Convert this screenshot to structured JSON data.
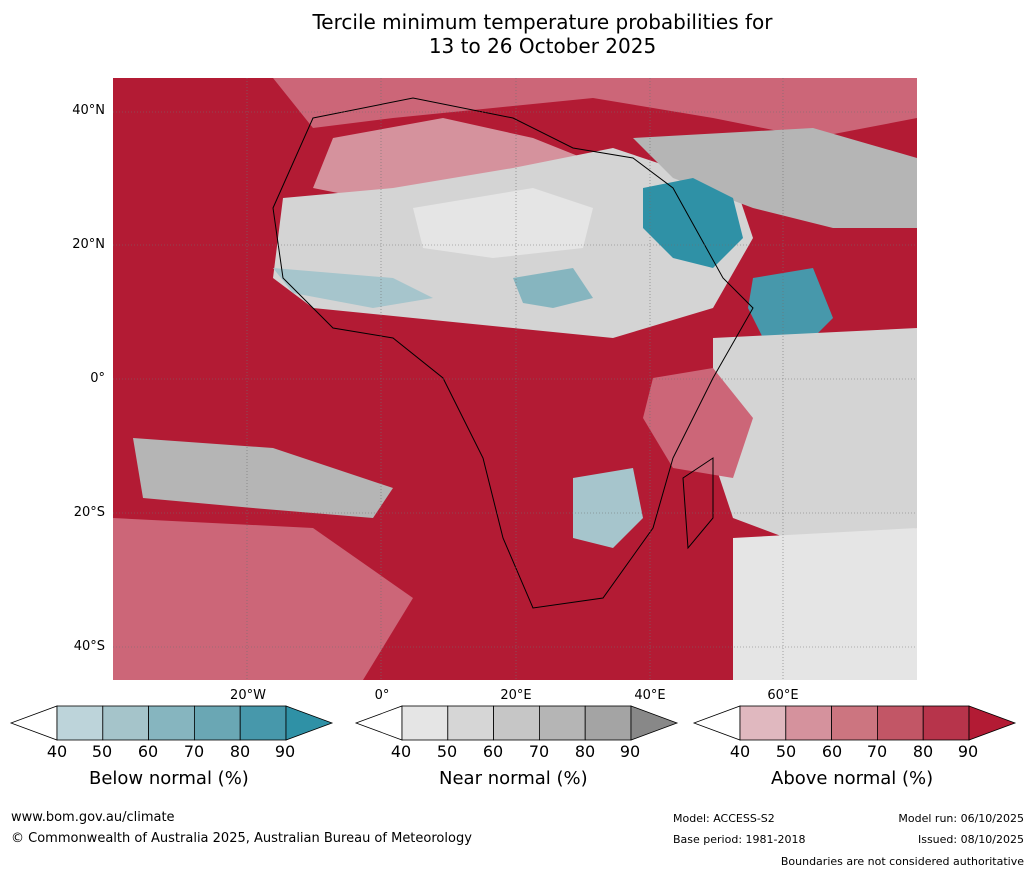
{
  "title_line1": "Tercile minimum temperature probabilities for",
  "title_line2": "13 to 26 October 2025",
  "map": {
    "lat_labels": [
      "40°N",
      "20°N",
      "0°",
      "20°S",
      "40°S"
    ],
    "lon_labels": [
      "20°W",
      "0°",
      "20°E",
      "40°E",
      "60°E"
    ],
    "colors": {
      "above_90": "#b31b34",
      "above_80": "#c4394f",
      "above_70": "#cc6678",
      "above_60": "#d5929d",
      "above_50": "#e0b8bf",
      "near_50": "#d4d4d4",
      "near_70": "#b5b5b5",
      "below_60": "#a6c5cc",
      "below_80": "#2f91a6",
      "white": "#ffffff",
      "coast": "#000000",
      "border": "#808080"
    }
  },
  "colorbars": [
    {
      "name": "Below normal (%)",
      "ticks": [
        "40",
        "50",
        "60",
        "70",
        "80",
        "90"
      ],
      "colors": [
        "#ffffff",
        "#bdd4da",
        "#a5c4ca",
        "#86b5bf",
        "#6aa7b4",
        "#4798ab",
        "#2f91a6"
      ]
    },
    {
      "name": "Near normal (%)",
      "ticks": [
        "40",
        "50",
        "60",
        "70",
        "80",
        "90"
      ],
      "colors": [
        "#ffffff",
        "#e5e5e5",
        "#d6d6d6",
        "#c6c6c6",
        "#b5b5b5",
        "#a4a4a4",
        "#888888"
      ]
    },
    {
      "name": "Above normal (%)",
      "ticks": [
        "40",
        "50",
        "60",
        "70",
        "80",
        "90"
      ],
      "colors": [
        "#ffffff",
        "#e0b8bf",
        "#d5929d",
        "#cc7580",
        "#c25666",
        "#b7344b",
        "#b31b34"
      ]
    }
  ],
  "footer": {
    "website": "www.bom.gov.au/climate",
    "copyright": "© Commonwealth of Australia 2025, Australian Bureau of Meteorology",
    "model": "Model: ACCESS-S2",
    "base_period": "Base period: 1981-2018",
    "model_run": "Model run: 06/10/2025",
    "issued": "Issued: 08/10/2025",
    "disclaimer": "Boundaries are not considered authoritative"
  }
}
